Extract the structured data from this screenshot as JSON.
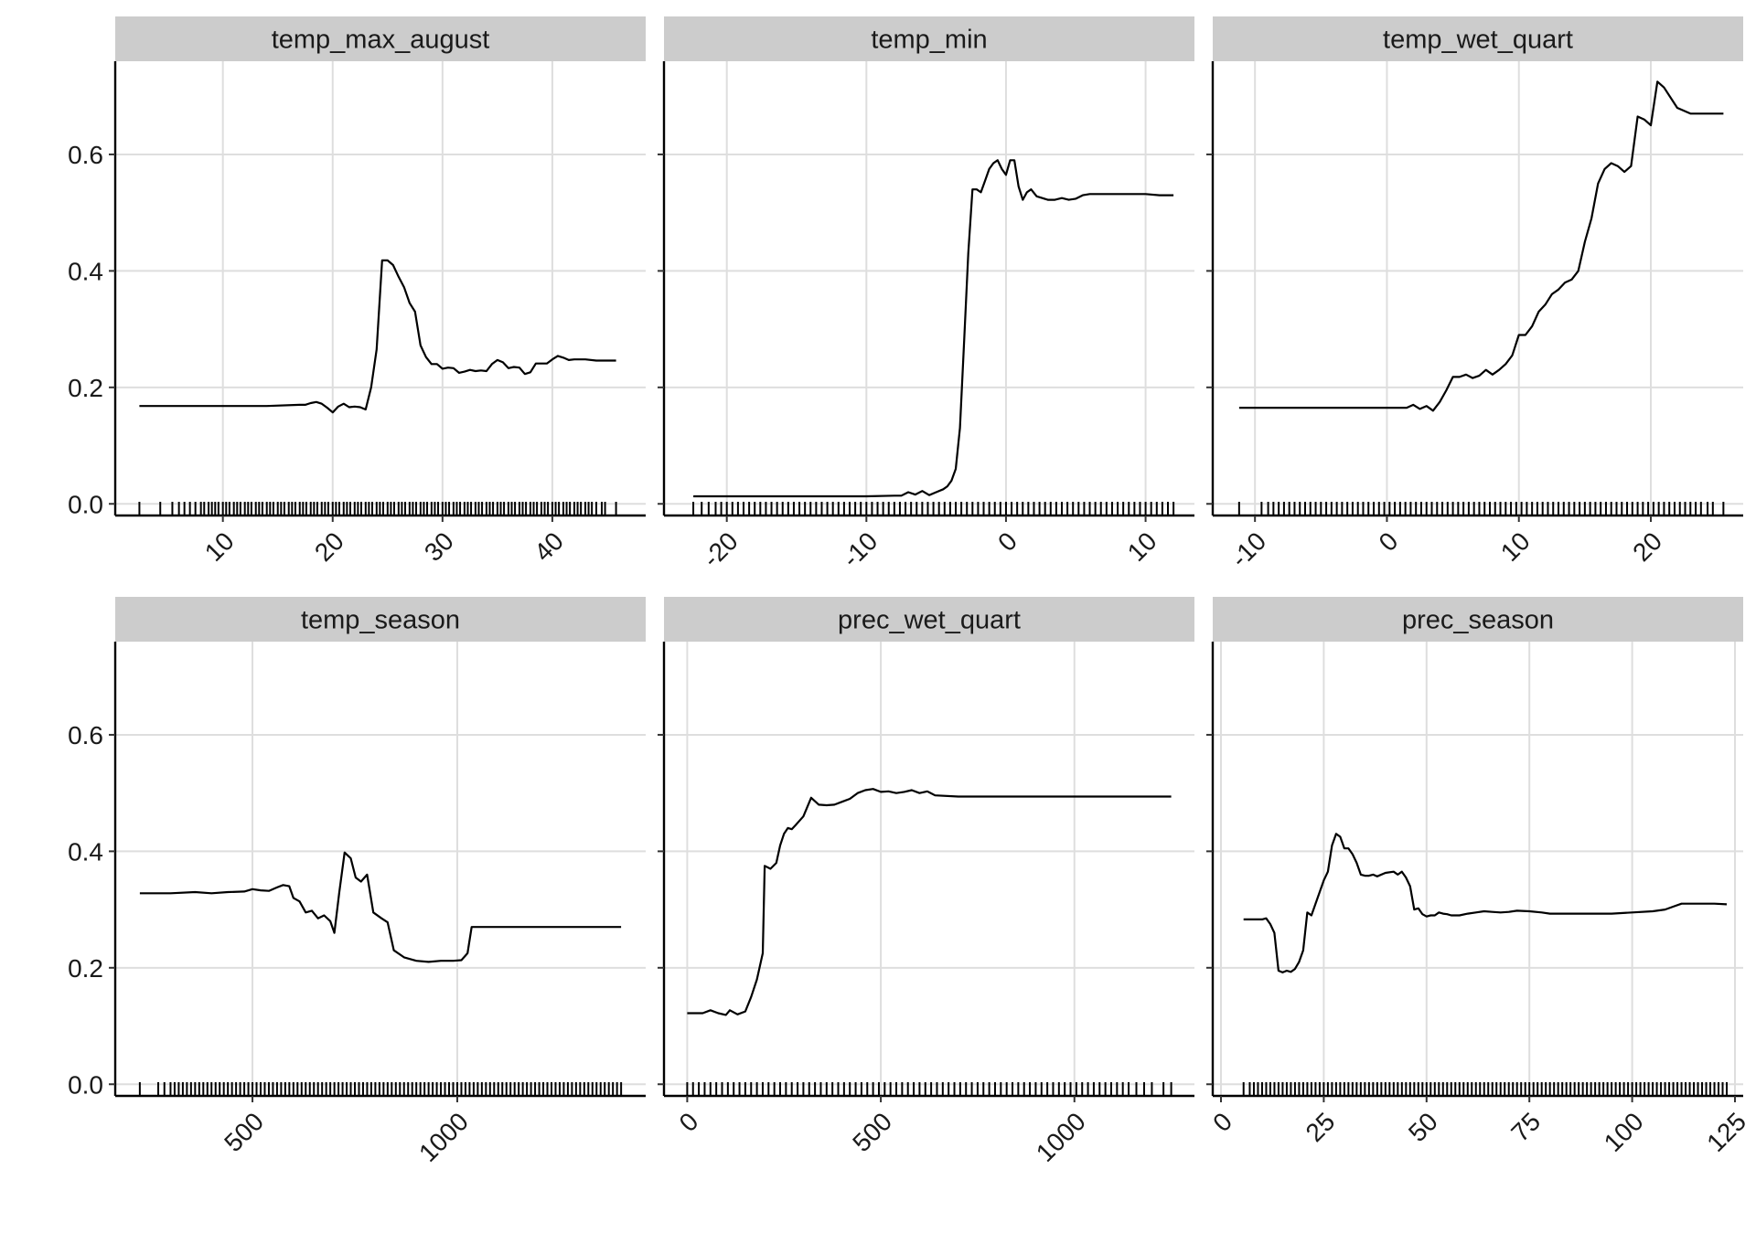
{
  "chart_data": [
    {
      "type": "line",
      "title": "temp_max_august",
      "xlim": [
        0.2,
        48.5
      ],
      "ylim": [
        -0.02,
        0.76
      ],
      "xticks": [
        10,
        20,
        30,
        40
      ],
      "yticks": [
        0.0,
        0.2,
        0.4,
        0.6
      ],
      "ytick_labels": [
        "0.0",
        "0.2",
        "0.4",
        "0.6"
      ],
      "grid": true,
      "x": [
        2.4,
        6,
        10,
        14,
        17,
        17.5,
        18,
        18.5,
        19,
        19.5,
        20,
        20.5,
        21,
        21.5,
        22,
        22.5,
        23,
        23.5,
        24,
        24.5,
        25,
        25.5,
        26,
        26.5,
        27,
        27.5,
        28,
        28.5,
        29,
        29.5,
        30,
        30.5,
        31,
        31.5,
        32,
        32.5,
        33,
        33.5,
        34,
        34.5,
        35,
        35.5,
        36,
        36.5,
        37,
        37.5,
        38,
        38.5,
        39,
        39.5,
        40,
        40.5,
        41,
        41.5,
        42,
        43,
        44,
        45.8
      ],
      "values": [
        0.168,
        0.168,
        0.168,
        0.168,
        0.17,
        0.17,
        0.173,
        0.175,
        0.172,
        0.165,
        0.157,
        0.167,
        0.172,
        0.166,
        0.167,
        0.166,
        0.162,
        0.2,
        0.265,
        0.418,
        0.418,
        0.41,
        0.39,
        0.372,
        0.345,
        0.33,
        0.272,
        0.252,
        0.24,
        0.24,
        0.232,
        0.234,
        0.233,
        0.225,
        0.227,
        0.23,
        0.228,
        0.229,
        0.228,
        0.24,
        0.247,
        0.243,
        0.233,
        0.235,
        0.234,
        0.223,
        0.226,
        0.241,
        0.241,
        0.241,
        0.248,
        0.254,
        0.251,
        0.247,
        0.248,
        0.248,
        0.246,
        0.246
      ],
      "rug": [
        2.4,
        4.3,
        5.4,
        6,
        6.5,
        7,
        7.5,
        8,
        8.3,
        8.7,
        9,
        9.3,
        9.6,
        10,
        10.3,
        10.6,
        11,
        11.3,
        11.6,
        12,
        12.3,
        12.6,
        13,
        13.3,
        13.6,
        14,
        14.3,
        14.6,
        15,
        15.3,
        15.6,
        16,
        16.3,
        16.6,
        17,
        17.3,
        17.6,
        18,
        18.3,
        18.6,
        19,
        19.3,
        19.6,
        20,
        20.3,
        20.6,
        21,
        21.3,
        21.6,
        22,
        22.3,
        22.6,
        23,
        23.3,
        23.6,
        24,
        24.3,
        24.6,
        25,
        25.3,
        25.6,
        26,
        26.3,
        26.6,
        27,
        27.3,
        27.6,
        28,
        28.3,
        28.6,
        29,
        29.3,
        29.6,
        30,
        30.3,
        30.6,
        31,
        31.3,
        31.6,
        32,
        32.3,
        32.6,
        33,
        33.3,
        33.6,
        34,
        34.3,
        34.6,
        35,
        35.3,
        35.6,
        36,
        36.3,
        36.6,
        37,
        37.3,
        37.6,
        38,
        38.3,
        38.6,
        39,
        39.3,
        39.6,
        40,
        40.3,
        40.6,
        41,
        41.3,
        41.6,
        42,
        42.3,
        42.6,
        43,
        43.3,
        43.6,
        44,
        44.5,
        44.8,
        45.8
      ]
    },
    {
      "type": "line",
      "title": "temp_min",
      "xlim": [
        -24.5,
        13.5
      ],
      "ylim": [
        -0.02,
        0.76
      ],
      "xticks": [
        -20,
        -10,
        0,
        10
      ],
      "yticks": [
        0.0,
        0.2,
        0.4,
        0.6
      ],
      "ytick_labels": [],
      "grid": true,
      "x": [
        -22.4,
        -18,
        -14,
        -10,
        -8,
        -7.5,
        -7,
        -6.5,
        -6,
        -5.5,
        -5,
        -4.5,
        -4.2,
        -3.9,
        -3.6,
        -3.3,
        -3.0,
        -2.7,
        -2.4,
        -2.1,
        -1.8,
        -1.5,
        -1.2,
        -0.9,
        -0.6,
        -0.3,
        0,
        0.3,
        0.6,
        0.9,
        1.2,
        1.5,
        1.8,
        2.2,
        2.6,
        3,
        3.5,
        4,
        4.5,
        5,
        5.5,
        6,
        7,
        8,
        9,
        10,
        11,
        12
      ],
      "values": [
        0.013,
        0.013,
        0.013,
        0.013,
        0.014,
        0.014,
        0.02,
        0.016,
        0.022,
        0.015,
        0.02,
        0.025,
        0.03,
        0.04,
        0.06,
        0.13,
        0.28,
        0.43,
        0.54,
        0.54,
        0.535,
        0.555,
        0.575,
        0.585,
        0.59,
        0.575,
        0.565,
        0.59,
        0.59,
        0.545,
        0.522,
        0.535,
        0.54,
        0.528,
        0.525,
        0.522,
        0.522,
        0.525,
        0.522,
        0.524,
        0.53,
        0.532,
        0.532,
        0.532,
        0.532,
        0.532,
        0.53,
        0.53
      ],
      "rug": [
        -22.4,
        -21.8,
        -21.3,
        -20.8,
        -20.4,
        -20,
        -19.6,
        -19.2,
        -18.8,
        -18.4,
        -18,
        -17.6,
        -17.2,
        -16.8,
        -16.4,
        -16,
        -15.6,
        -15.2,
        -14.8,
        -14.4,
        -14,
        -13.6,
        -13.2,
        -12.8,
        -12.4,
        -12,
        -11.6,
        -11.2,
        -10.8,
        -10.4,
        -10,
        -9.6,
        -9.2,
        -8.8,
        -8.4,
        -8,
        -7.6,
        -7.2,
        -6.8,
        -6.4,
        -6,
        -5.6,
        -5.2,
        -4.8,
        -4.4,
        -4,
        -3.6,
        -3.2,
        -2.8,
        -2.4,
        -2,
        -1.6,
        -1.2,
        -0.8,
        -0.4,
        0,
        0.4,
        0.8,
        1.2,
        1.6,
        2,
        2.4,
        2.8,
        3.2,
        3.6,
        4,
        4.4,
        4.8,
        5.2,
        5.6,
        6,
        6.4,
        6.8,
        7.2,
        7.6,
        8,
        8.4,
        8.8,
        9.2,
        9.6,
        10,
        10.4,
        10.8,
        11.2,
        11.6,
        12
      ]
    },
    {
      "type": "line",
      "title": "temp_wet_quart",
      "xlim": [
        -13.2,
        27.0
      ],
      "ylim": [
        -0.02,
        0.76
      ],
      "xticks": [
        -10,
        0,
        10,
        20
      ],
      "yticks": [
        0.0,
        0.2,
        0.4,
        0.6
      ],
      "ytick_labels": [],
      "grid": true,
      "x": [
        -11.2,
        -7,
        -3,
        0,
        1.5,
        2,
        2.5,
        3,
        3.5,
        4,
        4.5,
        5,
        5.5,
        6,
        6.5,
        7,
        7.5,
        8,
        8.5,
        9,
        9.5,
        10,
        10.5,
        11,
        11.5,
        12,
        12.5,
        13,
        13.5,
        14,
        14.5,
        15,
        15.5,
        16,
        16.5,
        17,
        17.5,
        18,
        18.5,
        19,
        19.5,
        20,
        20.5,
        21,
        22,
        23,
        25.5
      ],
      "values": [
        0.165,
        0.165,
        0.165,
        0.165,
        0.165,
        0.17,
        0.163,
        0.168,
        0.16,
        0.175,
        0.195,
        0.218,
        0.218,
        0.222,
        0.216,
        0.22,
        0.23,
        0.222,
        0.23,
        0.24,
        0.255,
        0.29,
        0.29,
        0.305,
        0.33,
        0.342,
        0.36,
        0.368,
        0.38,
        0.385,
        0.4,
        0.45,
        0.49,
        0.55,
        0.575,
        0.585,
        0.58,
        0.57,
        0.58,
        0.665,
        0.66,
        0.65,
        0.725,
        0.715,
        0.68,
        0.67,
        0.67
      ],
      "rug": [
        -11.2,
        -9.5,
        -9,
        -8.6,
        -8.2,
        -7.8,
        -7.4,
        -7,
        -6.6,
        -6.2,
        -5.8,
        -5.4,
        -5,
        -4.6,
        -4.2,
        -3.8,
        -3.4,
        -3,
        -2.6,
        -2.2,
        -1.8,
        -1.4,
        -1,
        -0.6,
        -0.2,
        0.2,
        0.6,
        1,
        1.4,
        1.8,
        2.2,
        2.6,
        3,
        3.4,
        3.8,
        4.2,
        4.6,
        5,
        5.4,
        5.8,
        6.2,
        6.6,
        7,
        7.4,
        7.8,
        8.2,
        8.6,
        9,
        9.4,
        9.8,
        10.2,
        10.6,
        11,
        11.4,
        11.8,
        12.2,
        12.6,
        13,
        13.4,
        13.8,
        14.2,
        14.6,
        15,
        15.4,
        15.8,
        16.2,
        16.6,
        17,
        17.4,
        17.8,
        18.2,
        18.6,
        19,
        19.4,
        19.8,
        20.2,
        20.6,
        21,
        21.4,
        21.8,
        22.2,
        22.6,
        23,
        23.4,
        23.8,
        24.3,
        24.7,
        25.5
      ]
    },
    {
      "type": "line",
      "title": "temp_season",
      "xlim": [
        165,
        1460
      ],
      "ylim": [
        -0.02,
        0.76
      ],
      "xticks": [
        500,
        1000
      ],
      "yticks": [
        0.0,
        0.2,
        0.4,
        0.6
      ],
      "ytick_labels": [
        "0.0",
        "0.2",
        "0.4",
        "0.6"
      ],
      "grid": true,
      "x": [
        225,
        300,
        360,
        400,
        440,
        480,
        500,
        520,
        540,
        560,
        575,
        590,
        600,
        615,
        630,
        645,
        660,
        675,
        690,
        700,
        712,
        725,
        740,
        752,
        765,
        780,
        795,
        815,
        830,
        845,
        870,
        900,
        930,
        960,
        990,
        1010,
        1025,
        1035,
        1100,
        1200,
        1300,
        1400
      ],
      "values": [
        0.328,
        0.328,
        0.33,
        0.328,
        0.33,
        0.331,
        0.335,
        0.333,
        0.332,
        0.338,
        0.342,
        0.34,
        0.32,
        0.314,
        0.295,
        0.298,
        0.285,
        0.29,
        0.28,
        0.26,
        0.33,
        0.398,
        0.388,
        0.355,
        0.348,
        0.36,
        0.295,
        0.285,
        0.278,
        0.23,
        0.218,
        0.212,
        0.21,
        0.212,
        0.212,
        0.213,
        0.225,
        0.27,
        0.27,
        0.27,
        0.27,
        0.27
      ],
      "rug": [
        225,
        270,
        285,
        300,
        310,
        320,
        330,
        340,
        350,
        360,
        370,
        380,
        390,
        400,
        410,
        420,
        430,
        440,
        450,
        460,
        470,
        480,
        490,
        500,
        510,
        520,
        530,
        540,
        550,
        560,
        570,
        580,
        590,
        600,
        610,
        620,
        630,
        640,
        650,
        660,
        670,
        680,
        690,
        700,
        710,
        720,
        730,
        740,
        750,
        760,
        770,
        780,
        790,
        800,
        810,
        820,
        830,
        840,
        850,
        860,
        870,
        880,
        890,
        900,
        910,
        920,
        930,
        940,
        950,
        960,
        970,
        980,
        990,
        1000,
        1010,
        1020,
        1030,
        1040,
        1050,
        1060,
        1070,
        1080,
        1090,
        1100,
        1110,
        1120,
        1130,
        1140,
        1150,
        1160,
        1170,
        1180,
        1190,
        1200,
        1210,
        1220,
        1230,
        1240,
        1250,
        1260,
        1270,
        1280,
        1290,
        1300,
        1310,
        1320,
        1330,
        1340,
        1350,
        1360,
        1370,
        1380,
        1390,
        1400
      ]
    },
    {
      "type": "line",
      "title": "prec_wet_quart",
      "xlim": [
        -60,
        1310
      ],
      "ylim": [
        -0.02,
        0.76
      ],
      "xticks": [
        0,
        500,
        1000
      ],
      "yticks": [
        0.0,
        0.2,
        0.4,
        0.6
      ],
      "ytick_labels": [],
      "grid": true,
      "x": [
        0,
        40,
        60,
        80,
        100,
        110,
        130,
        150,
        165,
        180,
        195,
        200,
        215,
        230,
        240,
        250,
        260,
        270,
        280,
        300,
        320,
        340,
        360,
        380,
        400,
        420,
        440,
        460,
        480,
        500,
        520,
        540,
        560,
        580,
        600,
        620,
        640,
        700,
        800,
        900,
        1000,
        1100,
        1250
      ],
      "values": [
        0.122,
        0.122,
        0.127,
        0.122,
        0.119,
        0.127,
        0.12,
        0.125,
        0.15,
        0.18,
        0.225,
        0.375,
        0.37,
        0.38,
        0.41,
        0.43,
        0.44,
        0.438,
        0.445,
        0.46,
        0.492,
        0.48,
        0.479,
        0.48,
        0.485,
        0.49,
        0.5,
        0.505,
        0.507,
        0.502,
        0.503,
        0.5,
        0.502,
        0.505,
        0.5,
        0.503,
        0.496,
        0.494,
        0.494,
        0.494,
        0.494,
        0.494,
        0.494
      ],
      "rug": [
        0,
        15,
        30,
        45,
        60,
        75,
        90,
        105,
        120,
        135,
        150,
        165,
        180,
        195,
        210,
        225,
        240,
        255,
        270,
        285,
        300,
        315,
        330,
        345,
        360,
        375,
        390,
        405,
        420,
        435,
        450,
        465,
        480,
        495,
        510,
        525,
        540,
        555,
        570,
        585,
        600,
        615,
        630,
        645,
        660,
        675,
        690,
        705,
        720,
        735,
        750,
        765,
        780,
        795,
        810,
        825,
        840,
        855,
        870,
        885,
        900,
        915,
        930,
        945,
        960,
        975,
        990,
        1005,
        1020,
        1035,
        1050,
        1065,
        1080,
        1095,
        1110,
        1125,
        1140,
        1160,
        1180,
        1200,
        1230,
        1250
      ]
    },
    {
      "type": "line",
      "title": "prec_season",
      "xlim": [
        -2,
        127
      ],
      "ylim": [
        -0.02,
        0.76
      ],
      "xticks": [
        0,
        25,
        50,
        75,
        100,
        125
      ],
      "yticks": [
        0.0,
        0.2,
        0.4,
        0.6
      ],
      "ytick_labels": [],
      "grid": true,
      "x": [
        5.5,
        8,
        10,
        11,
        12,
        13,
        14,
        15,
        16,
        17,
        18,
        19,
        20,
        21,
        22,
        23,
        24,
        25,
        26,
        27,
        28,
        29,
        30,
        31,
        32,
        33,
        34,
        35,
        36,
        37,
        38,
        40,
        42,
        43,
        44,
        45,
        46,
        47,
        48,
        49,
        50,
        51,
        52,
        53,
        54,
        55,
        56,
        58,
        60,
        62,
        64,
        66,
        68,
        70,
        72,
        75,
        78,
        80,
        85,
        90,
        95,
        100,
        105,
        108,
        110,
        112,
        115,
        120,
        123
      ],
      "values": [
        0.283,
        0.283,
        0.283,
        0.285,
        0.275,
        0.26,
        0.195,
        0.192,
        0.195,
        0.193,
        0.198,
        0.21,
        0.23,
        0.295,
        0.29,
        0.31,
        0.33,
        0.35,
        0.365,
        0.41,
        0.43,
        0.425,
        0.405,
        0.405,
        0.395,
        0.38,
        0.36,
        0.358,
        0.358,
        0.36,
        0.357,
        0.363,
        0.365,
        0.36,
        0.365,
        0.355,
        0.34,
        0.3,
        0.302,
        0.292,
        0.288,
        0.29,
        0.29,
        0.295,
        0.293,
        0.292,
        0.29,
        0.29,
        0.293,
        0.295,
        0.297,
        0.296,
        0.295,
        0.296,
        0.298,
        0.297,
        0.295,
        0.293,
        0.293,
        0.293,
        0.293,
        0.295,
        0.297,
        0.3,
        0.305,
        0.31,
        0.31,
        0.31,
        0.309
      ],
      "rug": [
        5.5,
        7,
        8,
        9,
        10,
        11,
        12,
        13,
        14,
        15,
        16,
        17,
        18,
        19,
        20,
        21,
        22,
        23,
        24,
        25,
        26,
        27,
        28,
        29,
        30,
        31,
        32,
        33,
        34,
        35,
        36,
        37,
        38,
        39,
        40,
        41,
        42,
        43,
        44,
        45,
        46,
        47,
        48,
        49,
        50,
        51,
        52,
        53,
        54,
        55,
        56,
        57,
        58,
        59,
        60,
        61,
        62,
        63,
        64,
        65,
        66,
        67,
        68,
        69,
        70,
        71,
        72,
        73,
        74,
        75,
        76,
        77,
        78,
        79,
        80,
        81,
        82,
        83,
        84,
        85,
        86,
        87,
        88,
        89,
        90,
        91,
        92,
        93,
        94,
        95,
        96,
        97,
        98,
        99,
        100,
        101,
        102,
        103,
        104,
        105,
        106,
        107,
        108,
        109,
        110,
        111,
        112,
        113,
        114,
        115,
        116,
        117,
        118,
        119,
        120,
        121,
        122,
        123
      ]
    }
  ]
}
